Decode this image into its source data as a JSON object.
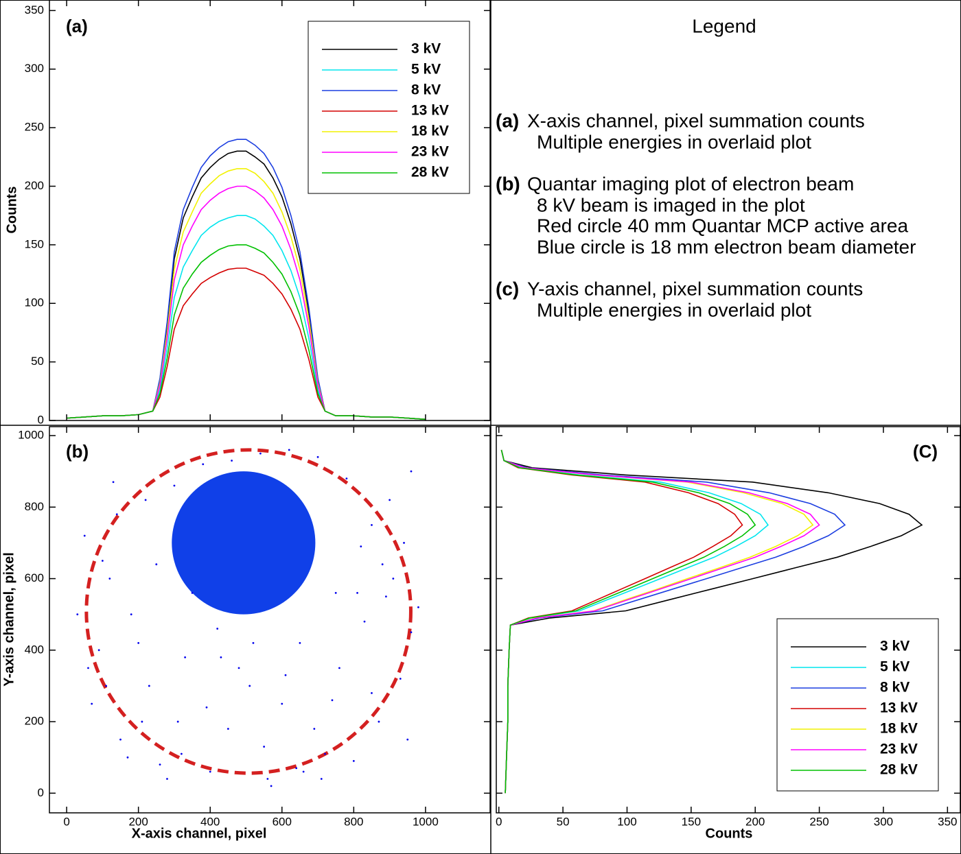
{
  "chart_data": [
    {
      "type": "line",
      "tag": "(a)",
      "ylabel": "Counts",
      "xlim": [
        -48,
        1180
      ],
      "xticks": [
        0,
        200,
        400,
        600,
        800,
        1000
      ],
      "xtick_labels": false,
      "ylim": [
        0,
        359
      ],
      "yticks": [
        0,
        50,
        100,
        150,
        200,
        250,
        300,
        350
      ],
      "legend": "upper right",
      "x": [
        0,
        50,
        100,
        150,
        200,
        240,
        260,
        280,
        300,
        325,
        350,
        375,
        400,
        425,
        450,
        475,
        500,
        525,
        550,
        575,
        600,
        625,
        650,
        675,
        700,
        720,
        750,
        800,
        850,
        900,
        950,
        1000
      ],
      "series": [
        {
          "name": "3 kV",
          "color": "#000000",
          "values": [
            2,
            3,
            4,
            4,
            5,
            8,
            35,
            81,
            138,
            173,
            191,
            207,
            216,
            223,
            228,
            230,
            230,
            225,
            219,
            207,
            191,
            168,
            138,
            92,
            35,
            8,
            4,
            4,
            3,
            3,
            2,
            1
          ]
        },
        {
          "name": "5 kV",
          "color": "#00e5ee",
          "values": [
            2,
            3,
            4,
            4,
            5,
            8,
            26,
            61,
            105,
            131,
            145,
            158,
            165,
            170,
            173,
            175,
            175,
            172,
            166,
            158,
            145,
            128,
            105,
            70,
            26,
            8,
            4,
            4,
            3,
            3,
            2,
            1
          ]
        },
        {
          "name": "8 kV",
          "color": "#1c3ee0",
          "values": [
            2,
            3,
            4,
            4,
            5,
            8,
            36,
            84,
            144,
            180,
            199,
            216,
            226,
            233,
            238,
            240,
            240,
            235,
            228,
            216,
            199,
            175,
            144,
            96,
            36,
            8,
            4,
            4,
            3,
            3,
            2,
            1
          ]
        },
        {
          "name": "13 kV",
          "color": "#d40000",
          "values": [
            2,
            3,
            4,
            4,
            5,
            8,
            20,
            46,
            78,
            98,
            108,
            117,
            122,
            126,
            129,
            130,
            130,
            127,
            124,
            117,
            108,
            95,
            78,
            52,
            20,
            8,
            4,
            4,
            3,
            3,
            2,
            1
          ]
        },
        {
          "name": "18 kV",
          "color": "#f2f200",
          "values": [
            2,
            3,
            4,
            4,
            5,
            8,
            32,
            75,
            129,
            161,
            178,
            194,
            202,
            209,
            213,
            215,
            215,
            211,
            204,
            194,
            178,
            157,
            129,
            86,
            32,
            8,
            4,
            4,
            3,
            3,
            2,
            1
          ]
        },
        {
          "name": "23 kV",
          "color": "#ff00ff",
          "values": [
            2,
            3,
            4,
            4,
            5,
            8,
            30,
            70,
            120,
            150,
            166,
            180,
            188,
            194,
            198,
            200,
            200,
            196,
            190,
            180,
            166,
            146,
            120,
            80,
            30,
            8,
            4,
            4,
            3,
            3,
            2,
            1
          ]
        },
        {
          "name": "28 kV",
          "color": "#00c000",
          "values": [
            2,
            3,
            4,
            4,
            5,
            8,
            23,
            53,
            90,
            113,
            125,
            135,
            141,
            146,
            149,
            150,
            150,
            147,
            143,
            135,
            125,
            110,
            90,
            60,
            23,
            8,
            4,
            4,
            3,
            3,
            2,
            1
          ]
        }
      ]
    },
    {
      "type": "scatter",
      "tag": "(b)",
      "xlabel": "X-axis channel, pixel",
      "ylabel": "Y-axis channel, pixel",
      "xlim": [
        -48,
        1180
      ],
      "xticks": [
        0,
        200,
        400,
        600,
        800,
        1000
      ],
      "ylim": [
        -55,
        1025
      ],
      "yticks": [
        0,
        200,
        400,
        600,
        800,
        1000
      ],
      "color": "#0000ee",
      "x": [
        50,
        120,
        180,
        90,
        230,
        310,
        150,
        70,
        260,
        400,
        560,
        640,
        720,
        800,
        870,
        930,
        960,
        910,
        850,
        780,
        700,
        620,
        540,
        460,
        380,
        300,
        220,
        140,
        100,
        60,
        200,
        330,
        420,
        510,
        600,
        690,
        760,
        830,
        890,
        940,
        980,
        130,
        250,
        350,
        450,
        550,
        650,
        750,
        850,
        950,
        170,
        280,
        390,
        480,
        570,
        660,
        740,
        820,
        900,
        30,
        110,
        210,
        320,
        430,
        520,
        610,
        710,
        810,
        880,
        960
      ],
      "values": [
        720,
        600,
        500,
        400,
        300,
        200,
        150,
        250,
        80,
        60,
        40,
        70,
        110,
        90,
        200,
        320,
        450,
        600,
        750,
        880,
        940,
        960,
        950,
        930,
        920,
        860,
        820,
        780,
        650,
        350,
        420,
        380,
        460,
        300,
        250,
        180,
        350,
        480,
        550,
        700,
        520,
        870,
        640,
        560,
        180,
        130,
        420,
        560,
        280,
        150,
        100,
        40,
        240,
        350,
        20,
        60,
        260,
        690,
        820,
        500,
        300,
        200,
        110,
        380,
        420,
        330,
        40,
        560,
        640,
        900
      ],
      "circles": [
        {
          "cx": 493,
          "cy": 700,
          "r": 200,
          "color": "#1040e8",
          "dashed": false
        },
        {
          "cx": 507,
          "cy": 508,
          "r": 452,
          "color": "#d42020",
          "dashed": true
        }
      ]
    },
    {
      "type": "line",
      "tag": "(C)",
      "xlabel": "Counts",
      "orientation": "horizontal",
      "xlim": [
        -2,
        360
      ],
      "xticks": [
        0,
        50,
        100,
        150,
        200,
        250,
        300,
        350
      ],
      "ylim": [
        -55,
        1025
      ],
      "yticks": [
        0,
        200,
        400,
        600,
        800,
        1000
      ],
      "ytick_labels": false,
      "legend": "lower right",
      "y": [
        0,
        100,
        200,
        300,
        400,
        470,
        490,
        510,
        540,
        570,
        600,
        630,
        660,
        690,
        720,
        750,
        780,
        810,
        840,
        870,
        890,
        910,
        930,
        960
      ],
      "series": [
        {
          "name": "3 kV",
          "color": "#000000",
          "values": [
            5,
            6,
            7,
            7,
            8,
            9,
            40,
            99,
            132,
            165,
            198,
            231,
            264,
            290,
            314,
            330,
            320,
            297,
            257,
            198,
            99,
            26,
            4,
            2
          ]
        },
        {
          "name": "5 kV",
          "color": "#00e5ee",
          "values": [
            5,
            6,
            7,
            7,
            8,
            9,
            25,
            63,
            84,
            105,
            126,
            147,
            168,
            185,
            200,
            210,
            204,
            189,
            164,
            126,
            63,
            17,
            4,
            2
          ]
        },
        {
          "name": "8 kV",
          "color": "#1c3ee0",
          "values": [
            5,
            6,
            7,
            7,
            8,
            9,
            32,
            81,
            108,
            135,
            162,
            189,
            216,
            238,
            257,
            270,
            262,
            243,
            211,
            162,
            81,
            22,
            4,
            2
          ]
        },
        {
          "name": "13 kV",
          "color": "#d40000",
          "values": [
            5,
            6,
            7,
            7,
            8,
            9,
            23,
            57,
            76,
            95,
            114,
            133,
            152,
            167,
            181,
            190,
            184,
            171,
            148,
            114,
            57,
            15,
            4,
            2
          ]
        },
        {
          "name": "18 kV",
          "color": "#f2f200",
          "values": [
            5,
            6,
            7,
            7,
            8,
            9,
            29,
            74,
            98,
            123,
            147,
            172,
            196,
            216,
            233,
            245,
            238,
            221,
            191,
            147,
            74,
            20,
            4,
            2
          ]
        },
        {
          "name": "23 kV",
          "color": "#ff00ff",
          "values": [
            5,
            6,
            7,
            7,
            8,
            9,
            30,
            75,
            100,
            125,
            150,
            175,
            200,
            220,
            238,
            250,
            243,
            225,
            195,
            150,
            75,
            20,
            4,
            2
          ]
        },
        {
          "name": "28 kV",
          "color": "#00c000",
          "values": [
            5,
            6,
            7,
            7,
            8,
            9,
            24,
            60,
            80,
            100,
            120,
            140,
            160,
            176,
            190,
            200,
            194,
            180,
            156,
            120,
            60,
            16,
            4,
            2
          ]
        }
      ]
    }
  ],
  "legend_panel": {
    "title": "Legend",
    "entries": [
      {
        "tag": "(a)",
        "lines": [
          "X-axis channel, pixel summation counts",
          "Multiple energies in overlaid plot"
        ]
      },
      {
        "tag": "(b)",
        "lines": [
          "Quantar imaging plot of electron beam",
          "8 kV beam is imaged in the plot",
          "Red circle  40 mm Quantar MCP active area",
          "Blue circle is 18 mm electron beam diameter"
        ]
      },
      {
        "tag": "(c)",
        "lines": [
          "Y-axis channel, pixel summation counts",
          "Multiple energies in overlaid plot"
        ]
      }
    ]
  }
}
